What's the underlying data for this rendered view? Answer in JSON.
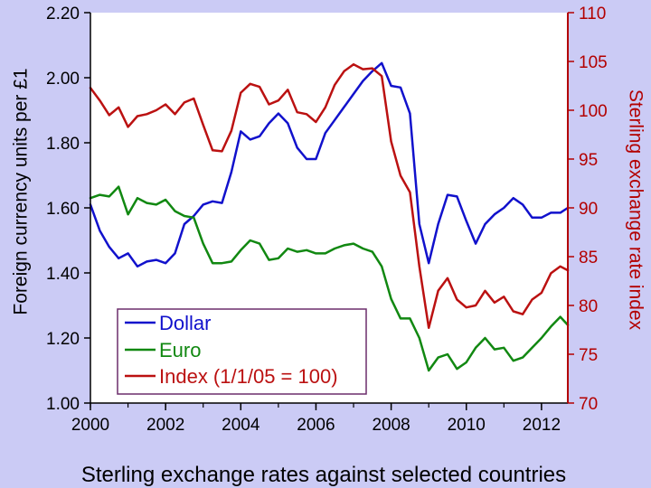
{
  "chart_data": {
    "type": "line",
    "title": "Sterling exchange rates against selected countries",
    "ylabel_left": "Foreign currency units per £1",
    "ylabel_right": "Sterling exchange rate index",
    "xlim": [
      2000,
      2012.7
    ],
    "ylim_left": [
      1.0,
      2.2
    ],
    "ylim_right": [
      70,
      110
    ],
    "x_ticks": [
      "2000",
      "2002",
      "2004",
      "2006",
      "2008",
      "2010",
      "2012"
    ],
    "y_ticks_left": [
      "1.00",
      "1.20",
      "1.40",
      "1.60",
      "1.80",
      "2.00",
      "2.20"
    ],
    "y_ticks_right": [
      "70",
      "75",
      "80",
      "85",
      "90",
      "95",
      "100",
      "105",
      "110"
    ],
    "grid": false,
    "legend_position": "bottom-left",
    "background_color": "#cbcbf5",
    "plot_background": "#ffffff",
    "series": [
      {
        "name": "Dollar",
        "axis": "left",
        "color": "#1111cc",
        "x": [
          2000.0,
          2000.25,
          2000.5,
          2000.75,
          2001.0,
          2001.25,
          2001.5,
          2001.75,
          2002.0,
          2002.25,
          2002.5,
          2002.75,
          2003.0,
          2003.25,
          2003.5,
          2003.75,
          2004.0,
          2004.25,
          2004.5,
          2004.75,
          2005.0,
          2005.25,
          2005.5,
          2005.75,
          2006.0,
          2006.25,
          2006.5,
          2006.75,
          2007.0,
          2007.25,
          2007.5,
          2007.75,
          2008.0,
          2008.25,
          2008.5,
          2008.75,
          2009.0,
          2009.25,
          2009.5,
          2009.75,
          2010.0,
          2010.25,
          2010.5,
          2010.75,
          2011.0,
          2011.25,
          2011.5,
          2011.75,
          2012.0,
          2012.25,
          2012.5,
          2012.7
        ],
        "values": [
          1.61,
          1.53,
          1.48,
          1.445,
          1.46,
          1.42,
          1.435,
          1.44,
          1.43,
          1.46,
          1.55,
          1.575,
          1.61,
          1.62,
          1.615,
          1.71,
          1.835,
          1.81,
          1.82,
          1.86,
          1.89,
          1.86,
          1.785,
          1.75,
          1.75,
          1.83,
          1.87,
          1.91,
          1.95,
          1.99,
          2.02,
          2.045,
          1.975,
          1.97,
          1.89,
          1.55,
          1.43,
          1.55,
          1.64,
          1.635,
          1.56,
          1.49,
          1.55,
          1.58,
          1.6,
          1.63,
          1.61,
          1.57,
          1.57,
          1.585,
          1.585,
          1.6
        ]
      },
      {
        "name": "Euro",
        "axis": "left",
        "color": "#118811",
        "x": [
          2000.0,
          2000.25,
          2000.5,
          2000.75,
          2001.0,
          2001.25,
          2001.5,
          2001.75,
          2002.0,
          2002.25,
          2002.5,
          2002.75,
          2003.0,
          2003.25,
          2003.5,
          2003.75,
          2004.0,
          2004.25,
          2004.5,
          2004.75,
          2005.0,
          2005.25,
          2005.5,
          2005.75,
          2006.0,
          2006.25,
          2006.5,
          2006.75,
          2007.0,
          2007.25,
          2007.5,
          2007.75,
          2008.0,
          2008.25,
          2008.5,
          2008.75,
          2009.0,
          2009.25,
          2009.5,
          2009.75,
          2010.0,
          2010.25,
          2010.5,
          2010.75,
          2011.0,
          2011.25,
          2011.5,
          2011.75,
          2012.0,
          2012.25,
          2012.5,
          2012.7
        ],
        "values": [
          1.63,
          1.64,
          1.635,
          1.665,
          1.58,
          1.63,
          1.615,
          1.61,
          1.625,
          1.59,
          1.575,
          1.57,
          1.49,
          1.43,
          1.43,
          1.435,
          1.47,
          1.5,
          1.49,
          1.44,
          1.445,
          1.475,
          1.465,
          1.47,
          1.46,
          1.46,
          1.475,
          1.485,
          1.49,
          1.475,
          1.465,
          1.42,
          1.32,
          1.26,
          1.26,
          1.2,
          1.1,
          1.14,
          1.15,
          1.105,
          1.125,
          1.17,
          1.2,
          1.165,
          1.17,
          1.13,
          1.14,
          1.17,
          1.2,
          1.235,
          1.265,
          1.24
        ]
      },
      {
        "name": "Index (1/1/05 = 100)",
        "axis": "right",
        "color": "#bb1111",
        "x": [
          2000.0,
          2000.25,
          2000.5,
          2000.75,
          2001.0,
          2001.25,
          2001.5,
          2001.75,
          2002.0,
          2002.25,
          2002.5,
          2002.75,
          2003.0,
          2003.25,
          2003.5,
          2003.75,
          2004.0,
          2004.25,
          2004.5,
          2004.75,
          2005.0,
          2005.25,
          2005.5,
          2005.75,
          2006.0,
          2006.25,
          2006.5,
          2006.75,
          2007.0,
          2007.25,
          2007.5,
          2007.75,
          2008.0,
          2008.25,
          2008.5,
          2008.75,
          2009.0,
          2009.25,
          2009.5,
          2009.75,
          2010.0,
          2010.25,
          2010.5,
          2010.75,
          2011.0,
          2011.25,
          2011.5,
          2011.75,
          2012.0,
          2012.25,
          2012.5,
          2012.7
        ],
        "values": [
          102.3,
          101.0,
          99.5,
          100.3,
          98.3,
          99.4,
          99.6,
          100.0,
          100.6,
          99.6,
          100.8,
          101.2,
          98.5,
          95.9,
          95.8,
          97.9,
          101.8,
          102.7,
          102.4,
          100.6,
          101.0,
          102.1,
          99.8,
          99.6,
          98.8,
          100.3,
          102.6,
          104.0,
          104.7,
          104.2,
          104.3,
          103.5,
          96.8,
          93.3,
          91.6,
          84.0,
          77.7,
          81.5,
          82.8,
          80.6,
          79.8,
          80.0,
          81.5,
          80.3,
          80.9,
          79.4,
          79.1,
          80.6,
          81.3,
          83.3,
          84.0,
          83.6
        ]
      }
    ]
  }
}
